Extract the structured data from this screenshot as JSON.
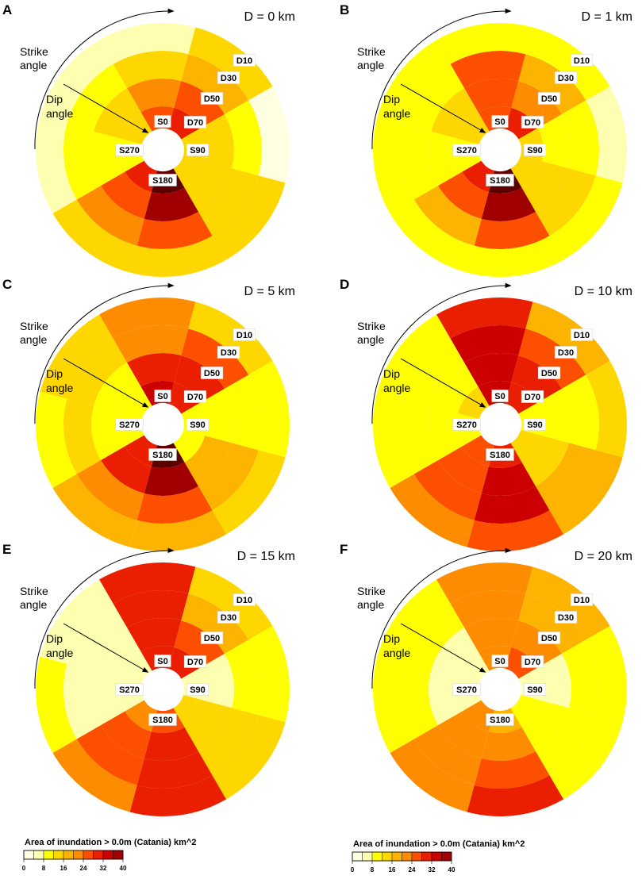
{
  "chart_data": {
    "type": "heatmap",
    "title": "Area of inundation > 0.0m (Catania)  km^2",
    "colorbar": {
      "label": "Area of inundation > 0.0m (Catania)  km^2",
      "min": 0,
      "max": 40,
      "step": 4,
      "tick_labels": [
        "0",
        "8",
        "16",
        "24",
        "32",
        "40"
      ],
      "colors": [
        "#fefee0",
        "#fefeb0",
        "#ffff00",
        "#fed700",
        "#fdb400",
        "#fe8c00",
        "#fc4f00",
        "#ea1e00",
        "#cc0000",
        "#a10000",
        "#5c0000"
      ]
    },
    "strike_labels": [
      "S0",
      "S90",
      "S180",
      "S270"
    ],
    "dip_labels": [
      "D10",
      "D30",
      "D50",
      "D70"
    ],
    "annotations": {
      "strike": [
        "Strike",
        "angle"
      ],
      "dip": [
        "Dip",
        "angle"
      ]
    },
    "panels": [
      {
        "label": "A",
        "title": "D =  0 km",
        "values": [
          [
            25,
            20,
            12,
            4
          ],
          [
            30,
            25,
            18,
            12
          ],
          [
            14,
            12,
            10,
            2
          ],
          [
            14,
            12,
            12,
            12
          ],
          [
            40,
            36,
            24,
            12
          ],
          [
            30,
            25,
            20,
            12
          ],
          [
            11,
            10,
            10,
            4
          ],
          [
            14,
            12,
            10,
            4
          ]
        ]
      },
      {
        "label": "B",
        "title": "D =  1 km",
        "values": [
          [
            25,
            25,
            25,
            10
          ],
          [
            30,
            20,
            16,
            10
          ],
          [
            12,
            10,
            10,
            4
          ],
          [
            14,
            14,
            12,
            10
          ],
          [
            40,
            36,
            24,
            10
          ],
          [
            30,
            25,
            16,
            10
          ],
          [
            10,
            10,
            10,
            10
          ],
          [
            14,
            14,
            10,
            10
          ]
        ]
      },
      {
        "label": "C",
        "title": "D =  5 km",
        "values": [
          [
            34,
            28,
            22,
            20
          ],
          [
            30,
            28,
            25,
            15
          ],
          [
            10,
            10,
            10,
            10
          ],
          [
            10,
            18,
            16,
            15
          ],
          [
            40,
            36,
            24,
            18
          ],
          [
            30,
            28,
            20,
            18
          ],
          [
            10,
            10,
            15,
            10
          ],
          [
            10,
            10,
            14,
            14
          ]
        ]
      },
      {
        "label": "D",
        "title": "D =  10 km",
        "values": [
          [
            33,
            33,
            33,
            30
          ],
          [
            30,
            30,
            25,
            16
          ],
          [
            10,
            10,
            10,
            12
          ],
          [
            14,
            14,
            16,
            16
          ],
          [
            28,
            33,
            33,
            26
          ],
          [
            25,
            25,
            25,
            20
          ],
          [
            10,
            10,
            10,
            10
          ],
          [
            14,
            10,
            10,
            10
          ]
        ]
      },
      {
        "label": "E",
        "title": "D =  15 km",
        "values": [
          [
            28,
            28,
            28,
            28
          ],
          [
            30,
            25,
            18,
            14
          ],
          [
            5,
            5,
            8,
            8
          ],
          [
            12,
            12,
            14,
            14
          ],
          [
            24,
            28,
            28,
            28
          ],
          [
            20,
            26,
            26,
            20
          ],
          [
            5,
            5,
            5,
            10
          ],
          [
            5,
            5,
            5,
            5
          ]
        ]
      },
      {
        "label": "F",
        "title": "D =  20 km",
        "values": [
          [
            22,
            22,
            22,
            22
          ],
          [
            24,
            20,
            18,
            16
          ],
          [
            5,
            5,
            10,
            10
          ],
          [
            10,
            10,
            10,
            10
          ],
          [
            18,
            22,
            26,
            28
          ],
          [
            20,
            20,
            20,
            20
          ],
          [
            5,
            5,
            8,
            10
          ],
          [
            5,
            5,
            8,
            8
          ]
        ]
      }
    ]
  }
}
